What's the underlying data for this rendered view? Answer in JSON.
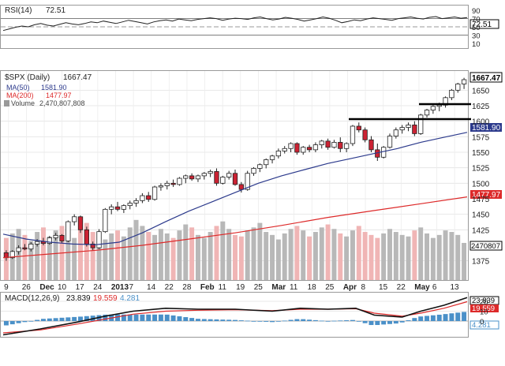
{
  "chart_data": {
    "type": "candlestick",
    "symbol_label": "$SPX (Daily)",
    "last_value": "1667.47",
    "x_tick_labels": [
      "9",
      "26",
      "Dec",
      "10",
      "17",
      "24",
      "2013",
      "7",
      "14",
      "22",
      "28",
      "Feb",
      "11",
      "19",
      "25",
      "Mar",
      "11",
      "18",
      "25",
      "Apr",
      "8",
      "15",
      "22",
      "May",
      "6",
      "13"
    ],
    "price_axis": {
      "ylim": [
        1344,
        1681
      ],
      "ticks": [
        "1650",
        "1625",
        "1600",
        "1575",
        "1550",
        "1525",
        "1500",
        "1475",
        "1450",
        "1425",
        "1375"
      ]
    },
    "rsi": {
      "label": "RSI(14)",
      "value": "72.51",
      "ticks": [
        "90",
        "70",
        "50",
        "30",
        "10"
      ],
      "ylim": [
        0,
        100
      ],
      "values": [
        41,
        45,
        49,
        52,
        50,
        55,
        58,
        54,
        52,
        56,
        60,
        57,
        55,
        58,
        62,
        60,
        64,
        61,
        58,
        62,
        66,
        63,
        60,
        57,
        62,
        65,
        67,
        64,
        69,
        67,
        65,
        68,
        70,
        72,
        70,
        66,
        69,
        71,
        70,
        68,
        72,
        74,
        70,
        67,
        69,
        73,
        71,
        68,
        64,
        67,
        70,
        74,
        71,
        66,
        60,
        63,
        67,
        65,
        69,
        72,
        70,
        68,
        66,
        70,
        72,
        74,
        71,
        69,
        73,
        75,
        70,
        72,
        74,
        71,
        72.51
      ]
    },
    "ma50": {
      "label": "MA(50)",
      "value": "1581.90",
      "x": [
        0,
        0.05,
        0.1,
        0.15,
        0.2,
        0.25,
        0.3,
        0.35,
        0.4,
        0.45,
        0.5,
        0.55,
        0.6,
        0.65,
        0.7,
        0.75,
        0.8,
        0.85,
        0.9,
        0.95,
        1
      ],
      "values": [
        1418,
        1410,
        1405,
        1402,
        1401,
        1405,
        1420,
        1438,
        1455,
        1470,
        1485,
        1500,
        1512,
        1522,
        1532,
        1540,
        1548,
        1556,
        1566,
        1574,
        1582
      ]
    },
    "ma200": {
      "label": "MA(200)",
      "value": "1477.97",
      "x": [
        0,
        0.1,
        0.2,
        0.3,
        0.4,
        0.5,
        0.6,
        0.7,
        0.8,
        0.9,
        1
      ],
      "values": [
        1380,
        1386,
        1392,
        1400,
        1410,
        1420,
        1432,
        1445,
        1456,
        1467,
        1478
      ]
    },
    "volume": {
      "label": "Volume",
      "value": "2,470,807,808",
      "axis_label": "2470807",
      "values": [
        2.8,
        3.1,
        3.4,
        3.0,
        2.6,
        3.2,
        3.5,
        2.9,
        3.3,
        3.6,
        3.1,
        2.8,
        3.4,
        3.8,
        3.2,
        3.0,
        2.7,
        3.1,
        3.3,
        2.9,
        3.5,
        4.0,
        3.6,
        3.2,
        3.0,
        3.4,
        3.1,
        2.8,
        3.3,
        3.7,
        3.5,
        3.0,
        2.8,
        3.2,
        3.6,
        3.9,
        3.4,
        3.0,
        2.9,
        3.3,
        3.5,
        3.8,
        3.2,
        3.0,
        2.7,
        3.1,
        3.4,
        3.6,
        3.3,
        2.9,
        3.2,
        3.5,
        3.7,
        3.4,
        3.1,
        2.9,
        3.3,
        3.6,
        3.2,
        3.0,
        2.8,
        3.1,
        3.4,
        3.2,
        3.0,
        2.9,
        3.3,
        3.5,
        3.1,
        2.8,
        3.0,
        3.3,
        3.2,
        3.0,
        2.47
      ]
    },
    "candles": [
      [
        1388,
        1392,
        1375,
        1380
      ],
      [
        1380,
        1392,
        1378,
        1390
      ],
      [
        1390,
        1400,
        1385,
        1396
      ],
      [
        1396,
        1402,
        1392,
        1394
      ],
      [
        1394,
        1405,
        1390,
        1402
      ],
      [
        1402,
        1410,
        1398,
        1406
      ],
      [
        1406,
        1412,
        1400,
        1403
      ],
      [
        1403,
        1415,
        1401,
        1412
      ],
      [
        1412,
        1420,
        1408,
        1416
      ],
      [
        1416,
        1418,
        1404,
        1407
      ],
      [
        1407,
        1440,
        1405,
        1438
      ],
      [
        1438,
        1450,
        1432,
        1446
      ],
      [
        1446,
        1448,
        1420,
        1425
      ],
      [
        1425,
        1430,
        1398,
        1402
      ],
      [
        1402,
        1406,
        1392,
        1396
      ],
      [
        1396,
        1426,
        1394,
        1422
      ],
      [
        1422,
        1460,
        1420,
        1458
      ],
      [
        1458,
        1466,
        1450,
        1462
      ],
      [
        1462,
        1470,
        1455,
        1458
      ],
      [
        1458,
        1466,
        1452,
        1464
      ],
      [
        1464,
        1472,
        1458,
        1468
      ],
      [
        1468,
        1476,
        1462,
        1472
      ],
      [
        1472,
        1484,
        1468,
        1480
      ],
      [
        1480,
        1486,
        1470,
        1474
      ],
      [
        1474,
        1496,
        1472,
        1494
      ],
      [
        1494,
        1500,
        1488,
        1496
      ],
      [
        1496,
        1504,
        1490,
        1500
      ],
      [
        1500,
        1506,
        1494,
        1498
      ],
      [
        1498,
        1510,
        1496,
        1508
      ],
      [
        1508,
        1514,
        1500,
        1512
      ],
      [
        1512,
        1516,
        1504,
        1507
      ],
      [
        1507,
        1514,
        1502,
        1512
      ],
      [
        1512,
        1518,
        1506,
        1516
      ],
      [
        1516,
        1522,
        1510,
        1519
      ],
      [
        1519,
        1524,
        1496,
        1500
      ],
      [
        1500,
        1512,
        1498,
        1510
      ],
      [
        1510,
        1520,
        1506,
        1516
      ],
      [
        1516,
        1522,
        1496,
        1498
      ],
      [
        1498,
        1502,
        1485,
        1490
      ],
      [
        1490,
        1520,
        1488,
        1516
      ],
      [
        1516,
        1526,
        1512,
        1524
      ],
      [
        1524,
        1532,
        1518,
        1530
      ],
      [
        1530,
        1540,
        1524,
        1538
      ],
      [
        1538,
        1546,
        1532,
        1544
      ],
      [
        1544,
        1556,
        1540,
        1552
      ],
      [
        1552,
        1560,
        1548,
        1556
      ],
      [
        1556,
        1566,
        1550,
        1564
      ],
      [
        1564,
        1566,
        1546,
        1550
      ],
      [
        1550,
        1560,
        1546,
        1558
      ],
      [
        1558,
        1562,
        1550,
        1554
      ],
      [
        1554,
        1566,
        1550,
        1562
      ],
      [
        1562,
        1570,
        1556,
        1568
      ],
      [
        1568,
        1572,
        1554,
        1558
      ],
      [
        1558,
        1570,
        1556,
        1566
      ],
      [
        1566,
        1574,
        1550,
        1556
      ],
      [
        1556,
        1566,
        1550,
        1564
      ],
      [
        1564,
        1594,
        1560,
        1592
      ],
      [
        1592,
        1598,
        1582,
        1586
      ],
      [
        1586,
        1590,
        1566,
        1570
      ],
      [
        1570,
        1576,
        1550,
        1554
      ],
      [
        1554,
        1564,
        1536,
        1542
      ],
      [
        1542,
        1560,
        1540,
        1558
      ],
      [
        1558,
        1580,
        1556,
        1576
      ],
      [
        1576,
        1590,
        1572,
        1586
      ],
      [
        1586,
        1594,
        1580,
        1590
      ],
      [
        1590,
        1598,
        1584,
        1594
      ],
      [
        1594,
        1600,
        1576,
        1580
      ],
      [
        1580,
        1612,
        1578,
        1610
      ],
      [
        1610,
        1620,
        1606,
        1618
      ],
      [
        1618,
        1626,
        1612,
        1624
      ],
      [
        1624,
        1630,
        1616,
        1626
      ],
      [
        1626,
        1640,
        1622,
        1638
      ],
      [
        1638,
        1652,
        1634,
        1650
      ],
      [
        1650,
        1662,
        1646,
        1660
      ],
      [
        1660,
        1670,
        1652,
        1667
      ]
    ],
    "macd": {
      "label": "MACD(12,26,9)",
      "macd_value": "23.839",
      "signal_value": "19.559",
      "hist_value": "4.281",
      "ticks": [
        "20",
        "10",
        "0"
      ],
      "ylim": [
        -16,
        28
      ],
      "x": [
        0,
        0.08,
        0.16,
        0.22,
        0.28,
        0.35,
        0.42,
        0.5,
        0.58,
        0.64,
        0.7,
        0.76,
        0.8,
        0.86,
        0.9,
        0.95,
        1
      ],
      "macd": [
        -14,
        -8,
        -1,
        5,
        10,
        13,
        12,
        12,
        10,
        13,
        12,
        13,
        6,
        4,
        10,
        16,
        23.8
      ],
      "signal": [
        -12,
        -9,
        -3,
        2,
        7,
        10,
        11,
        11.5,
        10.5,
        12,
        12,
        12.5,
        8,
        5,
        8,
        13,
        19.6
      ]
    },
    "colors": {
      "up": "#222222",
      "down": "#cc2233",
      "ma50": "#2c3a8c",
      "ma200": "#dd2a2a",
      "macd_hist": "#4a90c8",
      "volume": "#b8b8b8",
      "volume_down": "#f0b5b5"
    }
  }
}
